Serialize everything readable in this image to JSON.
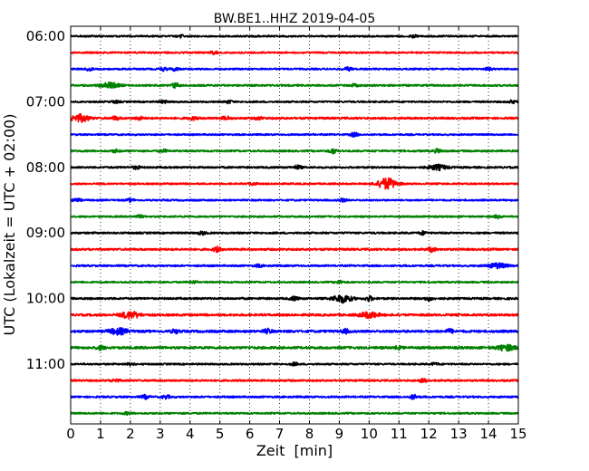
{
  "chart_data": {
    "type": "line",
    "title": "BW.BE1..HHZ 2019-04-05",
    "xlabel": "Zeit  [min]",
    "ylabel": "UTC (Lokalzeit = UTC + 02:00)",
    "xlim": [
      0,
      15
    ],
    "x_ticks": [
      "0",
      "1",
      "2",
      "3",
      "4",
      "5",
      "6",
      "7",
      "8",
      "9",
      "10",
      "11",
      "12",
      "13",
      "14",
      "15"
    ],
    "y_tick_labels": [
      "06:00",
      "07:00",
      "08:00",
      "09:00",
      "10:00",
      "11:00"
    ],
    "line_interval_minutes": 15,
    "first_line": "06:00",
    "grid": "vertical dotted",
    "colors": [
      "#000000",
      "#ff0000",
      "#0000ff",
      "#008000"
    ],
    "series": [
      {
        "start": "06:00",
        "color": "#000000",
        "noise": 0.9,
        "events": [
          {
            "minute": 3.7,
            "amplitude": 1.4
          },
          {
            "minute": 11.5,
            "amplitude": 1.2
          }
        ]
      },
      {
        "start": "06:15",
        "color": "#ff0000",
        "noise": 0.9,
        "events": [
          {
            "minute": 4.8,
            "amplitude": 1.4
          }
        ]
      },
      {
        "start": "06:30",
        "color": "#0000ff",
        "noise": 0.9,
        "events": [
          {
            "minute": 0.6,
            "amplitude": 1.5
          },
          {
            "minute": 3.1,
            "amplitude": 1.6
          },
          {
            "minute": 3.5,
            "amplitude": 1.6
          },
          {
            "minute": 9.3,
            "amplitude": 1.8
          },
          {
            "minute": 14.0,
            "amplitude": 1.2
          }
        ]
      },
      {
        "start": "06:45",
        "color": "#008000",
        "noise": 1.0,
        "events": [
          {
            "minute": 1.3,
            "amplitude": 2.8
          },
          {
            "minute": 3.5,
            "amplitude": 2.4
          },
          {
            "minute": 9.5,
            "amplitude": 1.2
          }
        ]
      },
      {
        "start": "07:00",
        "color": "#000000",
        "noise": 0.9,
        "events": [
          {
            "minute": 1.5,
            "amplitude": 1.2
          },
          {
            "minute": 3.1,
            "amplitude": 1.4
          },
          {
            "minute": 5.3,
            "amplitude": 1.4
          },
          {
            "minute": 14.8,
            "amplitude": 1.4
          }
        ]
      },
      {
        "start": "07:15",
        "color": "#ff0000",
        "noise": 1.1,
        "events": [
          {
            "minute": 0.3,
            "amplitude": 3.8
          },
          {
            "minute": 1.5,
            "amplitude": 1.8
          },
          {
            "minute": 2.3,
            "amplitude": 1.6
          },
          {
            "minute": 4.1,
            "amplitude": 1.4
          },
          {
            "minute": 5.2,
            "amplitude": 1.6
          },
          {
            "minute": 6.3,
            "amplitude": 1.4
          }
        ]
      },
      {
        "start": "07:30",
        "color": "#0000ff",
        "noise": 0.9,
        "events": [
          {
            "minute": 9.5,
            "amplitude": 2.0
          }
        ]
      },
      {
        "start": "07:45",
        "color": "#008000",
        "noise": 1.0,
        "events": [
          {
            "minute": 1.5,
            "amplitude": 1.3
          },
          {
            "minute": 3.1,
            "amplitude": 1.3
          },
          {
            "minute": 8.8,
            "amplitude": 2.4
          },
          {
            "minute": 12.3,
            "amplitude": 1.8
          }
        ]
      },
      {
        "start": "08:00",
        "color": "#000000",
        "noise": 1.0,
        "events": [
          {
            "minute": 2.2,
            "amplitude": 1.6
          },
          {
            "minute": 7.6,
            "amplitude": 2.0
          },
          {
            "minute": 12.3,
            "amplitude": 2.6
          }
        ]
      },
      {
        "start": "08:15",
        "color": "#ff0000",
        "noise": 0.9,
        "events": [
          {
            "minute": 6.1,
            "amplitude": 1.4
          },
          {
            "minute": 10.6,
            "amplitude": 6.0
          }
        ]
      },
      {
        "start": "08:30",
        "color": "#0000ff",
        "noise": 0.9,
        "events": [
          {
            "minute": 0.2,
            "amplitude": 2.0
          },
          {
            "minute": 2.0,
            "amplitude": 1.4
          },
          {
            "minute": 9.1,
            "amplitude": 1.6
          }
        ]
      },
      {
        "start": "08:45",
        "color": "#008000",
        "noise": 0.9,
        "events": [
          {
            "minute": 2.3,
            "amplitude": 1.3
          },
          {
            "minute": 14.3,
            "amplitude": 1.6
          }
        ]
      },
      {
        "start": "09:00",
        "color": "#000000",
        "noise": 1.0,
        "events": [
          {
            "minute": 4.4,
            "amplitude": 1.6
          },
          {
            "minute": 11.8,
            "amplitude": 1.6
          }
        ]
      },
      {
        "start": "09:15",
        "color": "#ff0000",
        "noise": 1.1,
        "events": [
          {
            "minute": 4.9,
            "amplitude": 2.4
          },
          {
            "minute": 12.1,
            "amplitude": 2.4
          }
        ]
      },
      {
        "start": "09:30",
        "color": "#0000ff",
        "noise": 1.0,
        "events": [
          {
            "minute": 6.3,
            "amplitude": 1.2
          },
          {
            "minute": 14.3,
            "amplitude": 2.6
          }
        ]
      },
      {
        "start": "09:45",
        "color": "#008000",
        "noise": 0.9,
        "events": [
          {
            "minute": 4.1,
            "amplitude": 1.2
          },
          {
            "minute": 9.0,
            "amplitude": 1.4
          }
        ]
      },
      {
        "start": "10:00",
        "color": "#000000",
        "noise": 1.1,
        "events": [
          {
            "minute": 7.5,
            "amplitude": 1.8
          },
          {
            "minute": 9.1,
            "amplitude": 4.0
          },
          {
            "minute": 10.0,
            "amplitude": 2.4
          },
          {
            "minute": 12.0,
            "amplitude": 1.8
          }
        ]
      },
      {
        "start": "10:15",
        "color": "#ff0000",
        "noise": 1.2,
        "events": [
          {
            "minute": 2.0,
            "amplitude": 3.6
          },
          {
            "minute": 10.0,
            "amplitude": 3.0
          }
        ]
      },
      {
        "start": "10:30",
        "color": "#0000ff",
        "noise": 1.3,
        "events": [
          {
            "minute": 1.6,
            "amplitude": 3.0
          },
          {
            "minute": 3.5,
            "amplitude": 2.0
          },
          {
            "minute": 6.6,
            "amplitude": 2.2
          },
          {
            "minute": 9.2,
            "amplitude": 2.0
          },
          {
            "minute": 12.7,
            "amplitude": 2.0
          }
        ]
      },
      {
        "start": "10:45",
        "color": "#008000",
        "noise": 1.3,
        "events": [
          {
            "minute": 1.0,
            "amplitude": 2.0
          },
          {
            "minute": 11.0,
            "amplitude": 1.8
          },
          {
            "minute": 14.6,
            "amplitude": 2.8
          }
        ]
      },
      {
        "start": "11:00",
        "color": "#000000",
        "noise": 0.9,
        "events": [
          {
            "minute": 2.0,
            "amplitude": 1.3
          },
          {
            "minute": 7.5,
            "amplitude": 1.3
          },
          {
            "minute": 12.2,
            "amplitude": 1.2
          }
        ]
      },
      {
        "start": "11:15",
        "color": "#ff0000",
        "noise": 1.0,
        "events": [
          {
            "minute": 1.5,
            "amplitude": 1.6
          },
          {
            "minute": 11.8,
            "amplitude": 1.8
          }
        ]
      },
      {
        "start": "11:30",
        "color": "#0000ff",
        "noise": 1.0,
        "events": [
          {
            "minute": 2.5,
            "amplitude": 1.8
          },
          {
            "minute": 3.2,
            "amplitude": 1.8
          },
          {
            "minute": 11.5,
            "amplitude": 2.2
          }
        ]
      },
      {
        "start": "11:45",
        "color": "#008000",
        "noise": 0.9,
        "events": [
          {
            "minute": 1.9,
            "amplitude": 1.2
          }
        ]
      }
    ]
  }
}
